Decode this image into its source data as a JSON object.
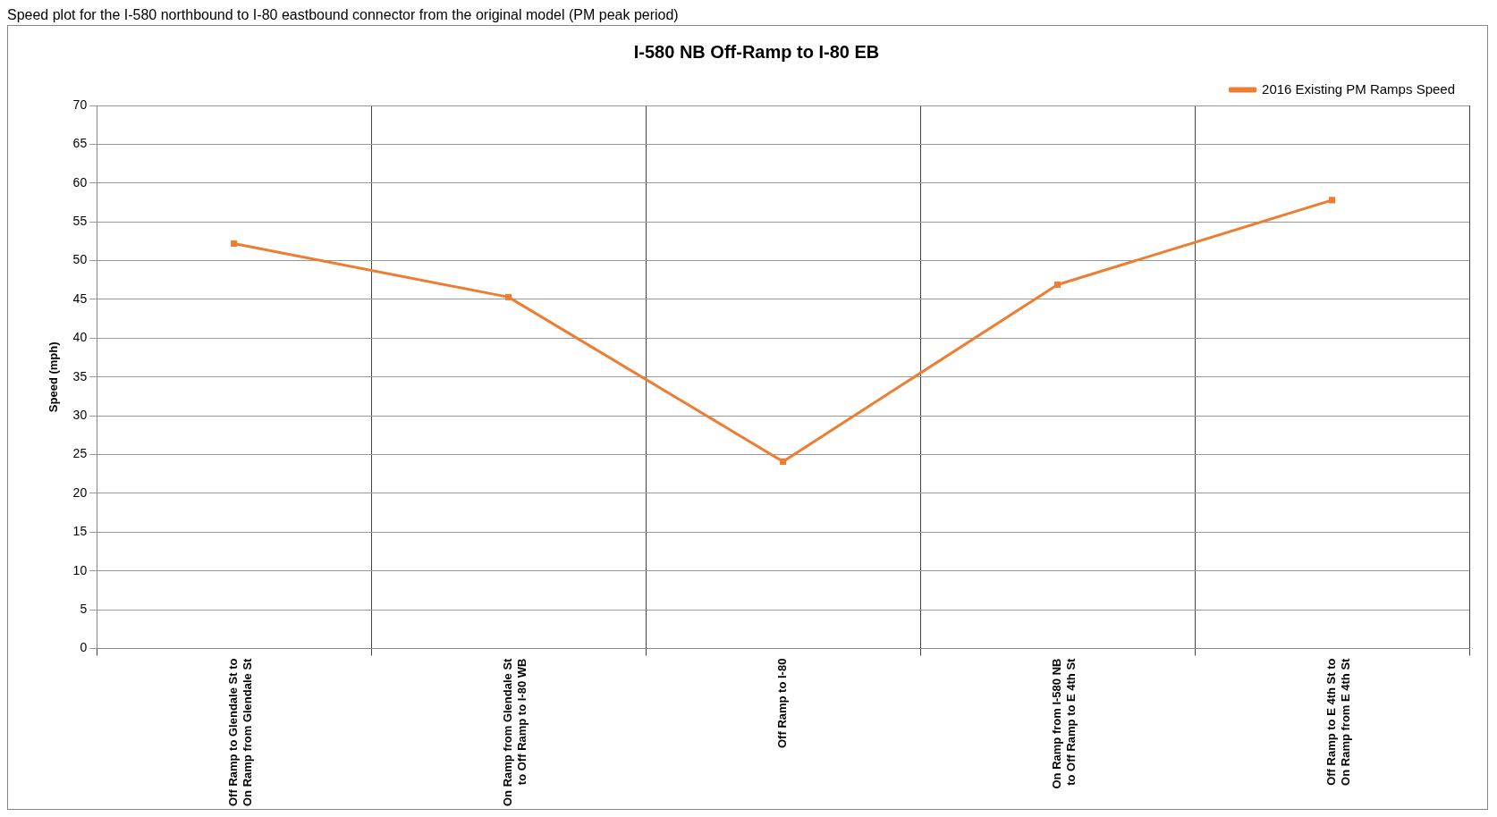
{
  "chart_data": {
    "type": "line",
    "title": "I-580 NB Off-Ramp to I-80 EB",
    "ylabel": "Speed (mph)",
    "annotations": [
      "Speed plot for the I-580 northbound to I-80 eastbound connector from the original model (PM peak period)"
    ],
    "categories": [
      "Off Ramp to Glendale St to On Ramp from Glendale St",
      "On Ramp from Glendale St to Off Ramp to I-80 WB",
      "Off Ramp to I-80",
      "On Ramp from I-580 NB to Off Ramp to E 4th St",
      "Off Ramp to E 4th St to On Ramp from E 4th St"
    ],
    "series": [
      {
        "name": "2016 Existing PM Ramps Speed",
        "color": "#ee7d31",
        "values": [
          52.2,
          45.3,
          24.1,
          46.9,
          57.8
        ]
      }
    ],
    "ylim": [
      0,
      70
    ],
    "yticks": [
      0,
      5,
      10,
      15,
      20,
      25,
      30,
      35,
      40,
      45,
      50,
      55,
      60,
      65,
      70
    ],
    "grid": true,
    "legend": "top right",
    "marker": "square",
    "line_style": "solid"
  }
}
